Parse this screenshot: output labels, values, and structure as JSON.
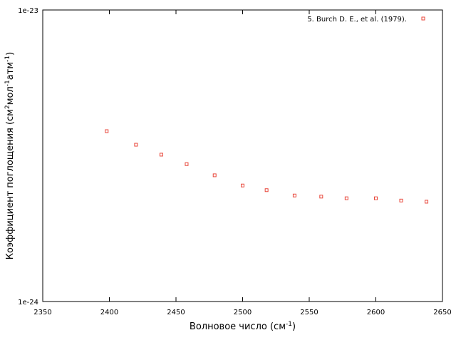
{
  "chart_data": {
    "type": "scatter",
    "xlabel": [
      "Волновое число (см",
      "-1",
      ")"
    ],
    "ylabel": [
      "Коэффициент поглощения (см",
      "2",
      "мол",
      "-1",
      "атм",
      "-1",
      ")"
    ],
    "series": [
      {
        "name": "5. Burch D. E., et al. (1979).",
        "color": "#e8463a",
        "x": [
          2398,
          2420,
          2439,
          2458,
          2479,
          2500,
          2518,
          2539,
          2559,
          2578,
          2600,
          2619,
          2638
        ],
        "values": [
          3.84e-24,
          3.45e-24,
          3.19e-24,
          2.96e-24,
          2.71e-24,
          2.5e-24,
          2.41e-24,
          2.31e-24,
          2.29e-24,
          2.26e-24,
          2.26e-24,
          2.22e-24,
          2.2e-24
        ]
      }
    ],
    "xlim": [
      2350,
      2650
    ],
    "xticks": [
      2350,
      2400,
      2450,
      2500,
      2550,
      2600,
      2650
    ],
    "ylim": [
      1e-24,
      1e-23
    ],
    "yticks": [
      {
        "value": 1e-24,
        "label": "1e-24"
      },
      {
        "value": 1e-23,
        "label": "1e-23"
      }
    ],
    "log_y": true,
    "grid": false,
    "legend": "top-right"
  }
}
